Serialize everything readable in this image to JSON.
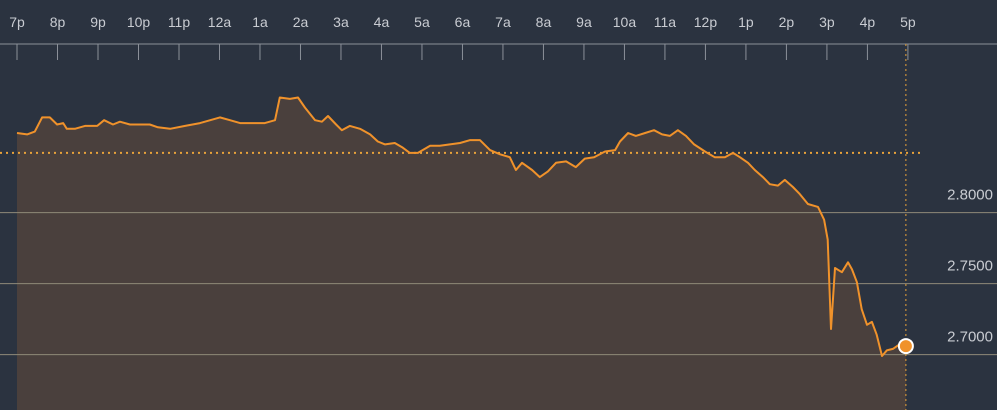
{
  "chart_data": {
    "type": "area",
    "color": "#f0922b",
    "fill_color": "#4a403d",
    "reference_value": 2.842,
    "xlim": [
      -0.42,
      24.2
    ],
    "ylim": [
      2.661,
      2.906
    ],
    "xticks": [
      {
        "value": 0,
        "label": "7p"
      },
      {
        "value": 1,
        "label": "8p"
      },
      {
        "value": 2,
        "label": "9p"
      },
      {
        "value": 3,
        "label": "10p"
      },
      {
        "value": 4,
        "label": "11p"
      },
      {
        "value": 5,
        "label": "12a"
      },
      {
        "value": 6,
        "label": "1a"
      },
      {
        "value": 7,
        "label": "2a"
      },
      {
        "value": 8,
        "label": "3a"
      },
      {
        "value": 9,
        "label": "4a"
      },
      {
        "value": 10,
        "label": "5a"
      },
      {
        "value": 11,
        "label": "6a"
      },
      {
        "value": 12,
        "label": "7a"
      },
      {
        "value": 13,
        "label": "8a"
      },
      {
        "value": 14,
        "label": "9a"
      },
      {
        "value": 15,
        "label": "10a"
      },
      {
        "value": 16,
        "label": "11a"
      },
      {
        "value": 17,
        "label": "12p"
      },
      {
        "value": 18,
        "label": "1p"
      },
      {
        "value": 19,
        "label": "2p"
      },
      {
        "value": 20,
        "label": "3p"
      },
      {
        "value": 21,
        "label": "4p"
      },
      {
        "value": 22,
        "label": "5p"
      }
    ],
    "yticks": [
      {
        "value": 2.7,
        "label": "2.7000"
      },
      {
        "value": 2.75,
        "label": "2.7500"
      },
      {
        "value": 2.8,
        "label": "2.8000"
      }
    ],
    "grid": true,
    "x": [
      0,
      0.25,
      0.44,
      0.62,
      0.81,
      0.99,
      1.14,
      1.23,
      1.43,
      1.68,
      1.98,
      2.15,
      2.37,
      2.54,
      2.79,
      3.28,
      3.48,
      3.78,
      4.15,
      4.52,
      4.77,
      5.01,
      5.26,
      5.51,
      5.63,
      6.12,
      6.37,
      6.49,
      6.74,
      6.94,
      7.11,
      7.36,
      7.53,
      7.68,
      7.88,
      8.02,
      8.22,
      8.47,
      8.72,
      8.91,
      9.09,
      9.33,
      9.51,
      9.7,
      9.9,
      10.2,
      10.44,
      10.69,
      10.94,
      11.19,
      11.43,
      11.68,
      11.93,
      12.17,
      12.32,
      12.47,
      12.72,
      12.91,
      13.11,
      13.31,
      13.56,
      13.8,
      14.02,
      14.25,
      14.52,
      14.77,
      14.89,
      15.09,
      15.28,
      15.51,
      15.73,
      15.93,
      16.12,
      16.32,
      16.52,
      16.72,
      16.99,
      17.23,
      17.48,
      17.68,
      17.85,
      18.05,
      18.22,
      18.42,
      18.59,
      18.79,
      18.96,
      19.16,
      19.33,
      19.53,
      19.78,
      19.93,
      20.02,
      20.1,
      20.2,
      20.37,
      20.52,
      20.62,
      20.74,
      20.86,
      20.99,
      21.11,
      21.23,
      21.36,
      21.48,
      21.63,
      21.78,
      21.95
    ],
    "values": [
      2.856,
      2.855,
      2.857,
      2.867,
      2.867,
      2.862,
      2.863,
      2.859,
      2.859,
      2.861,
      2.861,
      2.865,
      2.862,
      2.864,
      2.862,
      2.862,
      2.86,
      2.859,
      2.861,
      2.863,
      2.865,
      2.867,
      2.865,
      2.863,
      2.863,
      2.863,
      2.865,
      2.881,
      2.88,
      2.881,
      2.874,
      2.865,
      2.864,
      2.868,
      2.862,
      2.858,
      2.861,
      2.859,
      2.855,
      2.85,
      2.848,
      2.849,
      2.846,
      2.842,
      2.842,
      2.847,
      2.847,
      2.848,
      2.849,
      2.851,
      2.851,
      2.844,
      2.841,
      2.839,
      2.83,
      2.835,
      2.83,
      2.825,
      2.829,
      2.835,
      2.836,
      2.832,
      2.838,
      2.839,
      2.843,
      2.844,
      2.85,
      2.856,
      2.854,
      2.856,
      2.858,
      2.855,
      2.854,
      2.858,
      2.854,
      2.848,
      2.843,
      2.839,
      2.839,
      2.842,
      2.839,
      2.835,
      2.83,
      2.825,
      2.82,
      2.819,
      2.823,
      2.818,
      2.813,
      2.806,
      2.804,
      2.795,
      2.781,
      2.718,
      2.761,
      2.758,
      2.765,
      2.76,
      2.751,
      2.732,
      2.721,
      2.723,
      2.714,
      2.699,
      2.703,
      2.704,
      2.707,
      2.706
    ]
  }
}
